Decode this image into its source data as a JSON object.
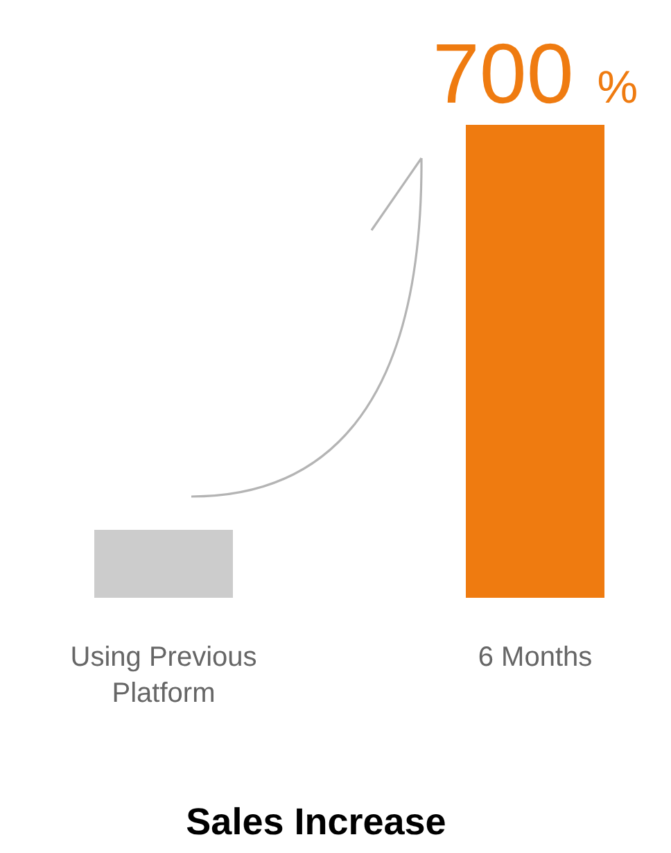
{
  "chart_data": {
    "type": "bar",
    "title": "Sales Increase",
    "categories": [
      "Using Previous Platform",
      "6 Months"
    ],
    "values": [
      100,
      700
    ],
    "colors": [
      "#cccccc",
      "#ef7b10"
    ],
    "value_labels": [
      null,
      "700 %"
    ],
    "tick_labels": "x"
  }
}
